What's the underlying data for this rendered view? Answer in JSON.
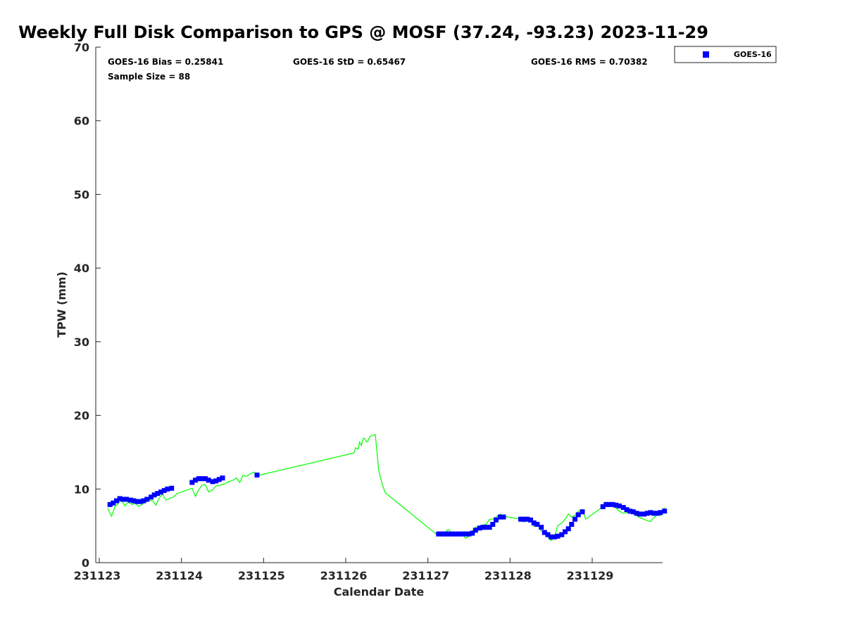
{
  "chart_data": {
    "type": "scatter",
    "title": "Weekly Full Disk Comparison to GPS @ MOSF (37.24, -93.23) 2023-11-29",
    "xlabel": "Calendar Date",
    "ylabel": "TPW (mm)",
    "xlim": [
      231123,
      231130
    ],
    "ylim": [
      0,
      70
    ],
    "x_ticks": [
      231123,
      231124,
      231125,
      231126,
      231127,
      231128,
      231129
    ],
    "x_tick_labels": [
      "231123",
      "231124",
      "231125",
      "231126",
      "231127",
      "231128",
      "231129"
    ],
    "y_ticks": [
      0,
      10,
      20,
      30,
      40,
      50,
      60,
      70
    ],
    "y_tick_labels": [
      "0",
      "10",
      "20",
      "30",
      "40",
      "50",
      "60",
      "70"
    ],
    "grid": false,
    "legend_position": "outside-top-right",
    "stats": {
      "bias": "GOES-16 Bias = 0.25841",
      "std": "GOES-16 StD = 0.65467",
      "rms": "GOES-16 RMS = 0.70382",
      "sample": "Sample Size = 88"
    },
    "series": [
      {
        "name": "GOES-16",
        "kind": "markers",
        "color": "#0000ff",
        "marker": "square",
        "points": [
          [
            231123.13,
            7.9
          ],
          [
            231123.17,
            8.1
          ],
          [
            231123.21,
            8.4
          ],
          [
            231123.25,
            8.7
          ],
          [
            231123.29,
            8.6
          ],
          [
            231123.33,
            8.6
          ],
          [
            231123.38,
            8.5
          ],
          [
            231123.42,
            8.4
          ],
          [
            231123.46,
            8.3
          ],
          [
            231123.5,
            8.3
          ],
          [
            231123.54,
            8.4
          ],
          [
            231123.58,
            8.6
          ],
          [
            231123.63,
            8.9
          ],
          [
            231123.67,
            9.2
          ],
          [
            231123.71,
            9.4
          ],
          [
            231123.75,
            9.6
          ],
          [
            231123.79,
            9.8
          ],
          [
            231123.83,
            10.0
          ],
          [
            231123.88,
            10.1
          ],
          [
            231124.13,
            10.9
          ],
          [
            231124.17,
            11.2
          ],
          [
            231124.21,
            11.4
          ],
          [
            231124.25,
            11.4
          ],
          [
            231124.29,
            11.4
          ],
          [
            231124.33,
            11.2
          ],
          [
            231124.38,
            11.0
          ],
          [
            231124.42,
            11.1
          ],
          [
            231124.46,
            11.3
          ],
          [
            231124.5,
            11.5
          ],
          [
            231124.92,
            11.9
          ],
          [
            231127.13,
            3.9
          ],
          [
            231127.17,
            3.9
          ],
          [
            231127.21,
            3.9
          ],
          [
            231127.25,
            3.9
          ],
          [
            231127.29,
            3.9
          ],
          [
            231127.33,
            3.9
          ],
          [
            231127.38,
            3.9
          ],
          [
            231127.42,
            3.9
          ],
          [
            231127.46,
            3.9
          ],
          [
            231127.5,
            3.9
          ],
          [
            231127.54,
            4.0
          ],
          [
            231127.58,
            4.4
          ],
          [
            231127.63,
            4.7
          ],
          [
            231127.67,
            4.8
          ],
          [
            231127.71,
            4.8
          ],
          [
            231127.75,
            4.8
          ],
          [
            231127.79,
            5.2
          ],
          [
            231127.83,
            5.8
          ],
          [
            231127.88,
            6.2
          ],
          [
            231127.92,
            6.2
          ],
          [
            231128.13,
            5.9
          ],
          [
            231128.17,
            5.9
          ],
          [
            231128.21,
            5.9
          ],
          [
            231128.25,
            5.8
          ],
          [
            231128.29,
            5.4
          ],
          [
            231128.33,
            5.2
          ],
          [
            231128.38,
            4.8
          ],
          [
            231128.42,
            4.1
          ],
          [
            231128.46,
            3.8
          ],
          [
            231128.5,
            3.5
          ],
          [
            231128.54,
            3.5
          ],
          [
            231128.58,
            3.6
          ],
          [
            231128.63,
            3.8
          ],
          [
            231128.67,
            4.2
          ],
          [
            231128.71,
            4.6
          ],
          [
            231128.75,
            5.2
          ],
          [
            231128.79,
            5.9
          ],
          [
            231128.83,
            6.5
          ],
          [
            231128.88,
            6.9
          ],
          [
            231129.13,
            7.6
          ],
          [
            231129.17,
            7.9
          ],
          [
            231129.21,
            7.9
          ],
          [
            231129.25,
            7.9
          ],
          [
            231129.29,
            7.8
          ],
          [
            231129.33,
            7.7
          ],
          [
            231129.38,
            7.5
          ],
          [
            231129.42,
            7.2
          ],
          [
            231129.46,
            7.0
          ],
          [
            231129.5,
            6.9
          ],
          [
            231129.54,
            6.7
          ],
          [
            231129.58,
            6.6
          ],
          [
            231129.63,
            6.6
          ],
          [
            231129.67,
            6.7
          ],
          [
            231129.71,
            6.8
          ],
          [
            231129.75,
            6.7
          ],
          [
            231129.79,
            6.7
          ],
          [
            231129.83,
            6.8
          ],
          [
            231129.88,
            7.0
          ]
        ]
      },
      {
        "kind": "line",
        "color": "#00ff00",
        "points": [
          [
            231123.1,
            7.4
          ],
          [
            231123.15,
            6.3
          ],
          [
            231123.19,
            7.6
          ],
          [
            231123.23,
            8.0
          ],
          [
            231123.27,
            8.6
          ],
          [
            231123.31,
            7.7
          ],
          [
            231123.35,
            8.2
          ],
          [
            231123.4,
            7.9
          ],
          [
            231123.44,
            8.1
          ],
          [
            231123.48,
            7.6
          ],
          [
            231123.52,
            7.9
          ],
          [
            231123.56,
            8.2
          ],
          [
            231123.6,
            8.5
          ],
          [
            231123.65,
            8.4
          ],
          [
            231123.69,
            7.8
          ],
          [
            231123.73,
            8.8
          ],
          [
            231123.77,
            9.3
          ],
          [
            231123.81,
            8.5
          ],
          [
            231123.85,
            8.7
          ],
          [
            231123.9,
            8.9
          ],
          [
            231123.95,
            9.4
          ],
          [
            231124.13,
            10.1
          ],
          [
            231124.17,
            9.0
          ],
          [
            231124.21,
            9.9
          ],
          [
            231124.25,
            10.5
          ],
          [
            231124.29,
            10.6
          ],
          [
            231124.33,
            9.6
          ],
          [
            231124.38,
            9.9
          ],
          [
            231124.42,
            10.4
          ],
          [
            231124.46,
            10.5
          ],
          [
            231124.5,
            10.6
          ],
          [
            231124.58,
            11.0
          ],
          [
            231124.63,
            11.2
          ],
          [
            231124.67,
            11.5
          ],
          [
            231124.71,
            10.9
          ],
          [
            231124.75,
            11.9
          ],
          [
            231124.79,
            11.7
          ],
          [
            231124.83,
            12.0
          ],
          [
            231124.88,
            12.3
          ],
          [
            231124.92,
            11.8
          ],
          [
            231126.1,
            14.9
          ],
          [
            231126.12,
            15.6
          ],
          [
            231126.15,
            15.4
          ],
          [
            231126.17,
            16.4
          ],
          [
            231126.19,
            15.9
          ],
          [
            231126.21,
            16.8
          ],
          [
            231126.23,
            16.9
          ],
          [
            231126.25,
            16.4
          ],
          [
            231126.27,
            16.5
          ],
          [
            231126.29,
            17.1
          ],
          [
            231126.33,
            17.3
          ],
          [
            231126.36,
            17.4
          ],
          [
            231126.38,
            15.1
          ],
          [
            231126.4,
            12.6
          ],
          [
            231126.44,
            10.8
          ],
          [
            231126.48,
            9.5
          ],
          [
            231127.1,
            3.9
          ],
          [
            231127.17,
            3.8
          ],
          [
            231127.25,
            4.5
          ],
          [
            231127.33,
            3.6
          ],
          [
            231127.42,
            3.9
          ],
          [
            231127.46,
            3.3
          ],
          [
            231127.5,
            3.6
          ],
          [
            231127.54,
            4.3
          ],
          [
            231127.58,
            4.8
          ],
          [
            231127.63,
            4.7
          ],
          [
            231127.67,
            5.1
          ],
          [
            231127.71,
            5.2
          ],
          [
            231127.75,
            5.9
          ],
          [
            231127.79,
            5.9
          ],
          [
            231127.83,
            6.2
          ],
          [
            231127.88,
            6.6
          ],
          [
            231127.92,
            6.3
          ],
          [
            231128.13,
            5.9
          ],
          [
            231128.17,
            5.5
          ],
          [
            231128.21,
            6.1
          ],
          [
            231128.25,
            5.8
          ],
          [
            231128.29,
            4.9
          ],
          [
            231128.33,
            5.3
          ],
          [
            231128.38,
            4.3
          ],
          [
            231128.42,
            4.0
          ],
          [
            231128.46,
            3.5
          ],
          [
            231128.5,
            3.0
          ],
          [
            231128.54,
            3.5
          ],
          [
            231128.58,
            5.0
          ],
          [
            231128.63,
            5.4
          ],
          [
            231128.67,
            5.9
          ],
          [
            231128.71,
            6.6
          ],
          [
            231128.75,
            6.2
          ],
          [
            231128.79,
            6.4
          ],
          [
            231128.83,
            7.0
          ],
          [
            231128.88,
            7.2
          ],
          [
            231128.92,
            5.9
          ],
          [
            231129.13,
            7.6
          ],
          [
            231129.17,
            8.0
          ],
          [
            231129.21,
            7.8
          ],
          [
            231129.25,
            8.1
          ],
          [
            231129.29,
            7.4
          ],
          [
            231129.33,
            7.0
          ],
          [
            231129.38,
            6.7
          ],
          [
            231129.42,
            6.8
          ],
          [
            231129.46,
            6.7
          ],
          [
            231129.5,
            6.8
          ],
          [
            231129.54,
            6.4
          ],
          [
            231129.58,
            6.1
          ],
          [
            231129.63,
            5.9
          ],
          [
            231129.67,
            5.7
          ],
          [
            231129.71,
            5.6
          ],
          [
            231129.75,
            6.1
          ],
          [
            231129.79,
            6.5
          ],
          [
            231129.83,
            6.4
          ],
          [
            231129.88,
            7.5
          ]
        ]
      }
    ]
  }
}
